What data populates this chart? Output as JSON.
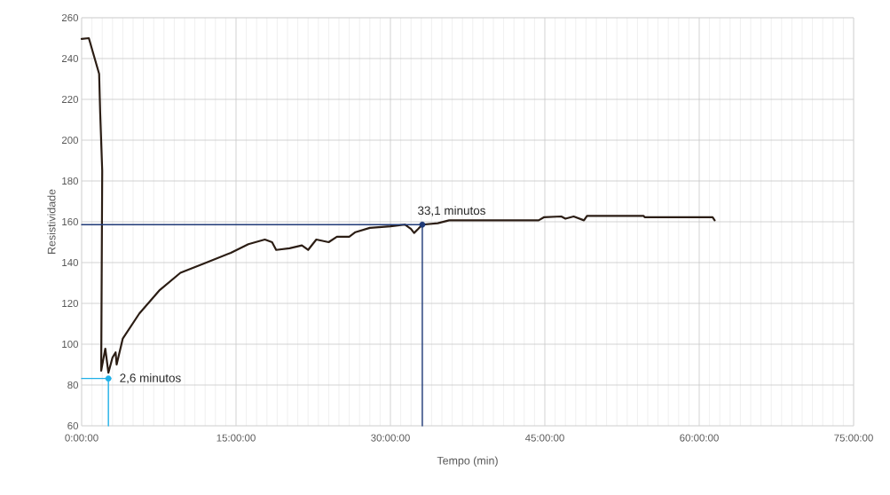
{
  "chart_data": {
    "type": "line",
    "xlabel": "Tempo (min)",
    "ylabel": "Resistividade",
    "xlim": [
      0,
      75
    ],
    "ylim": [
      60,
      260
    ],
    "xticks": [
      {
        "value": 0,
        "label": "0:00:00"
      },
      {
        "value": 15,
        "label": "15:00:00"
      },
      {
        "value": 30,
        "label": "30:00:00"
      },
      {
        "value": 45,
        "label": "45:00:00"
      },
      {
        "value": 60,
        "label": "60:00:00"
      },
      {
        "value": 75,
        "label": "75:00:00"
      }
    ],
    "yticks": [
      60,
      80,
      100,
      120,
      140,
      160,
      180,
      200,
      220,
      240,
      260
    ],
    "grid": true,
    "marker": "none",
    "line_style": "solid",
    "series": [
      {
        "color": "#2b1d14",
        "x": [
          0,
          0.7,
          1.7,
          1.8,
          2.0,
          1.9,
          2.3,
          2.6,
          3.0,
          3.3,
          3.4,
          4.0,
          5.6,
          7.6,
          9.6,
          11.9,
          14.5,
          16.2,
          17.8,
          18.5,
          18.9,
          20.2,
          21.4,
          22,
          22.8,
          24,
          24.8,
          26,
          26.6,
          28,
          30,
          31.4,
          32,
          32.3,
          32.7,
          33.1,
          34.6,
          35.7,
          44.4,
          44.9,
          46.6,
          47,
          47.8,
          48.8,
          49.1,
          54.6,
          54.7,
          61.3,
          61.5
        ],
        "values": [
          249.6,
          250,
          232.5,
          213.6,
          185,
          87,
          97.8,
          86,
          93.5,
          96,
          90,
          102.8,
          115,
          126.6,
          135,
          139.6,
          144.8,
          149,
          151.3,
          150,
          146.2,
          147,
          148.4,
          146.2,
          151.3,
          150,
          152.7,
          152.7,
          154.9,
          157,
          157.8,
          158.6,
          156.5,
          154.5,
          156.5,
          158.6,
          159.3,
          160.7,
          160.7,
          162.2,
          162.6,
          161.5,
          162.6,
          160.7,
          162.9,
          162.9,
          162.2,
          162.2,
          160.7
        ]
      },
      {
        "type": "line",
        "color": "#1fb0e8",
        "x": [
          0,
          2.6,
          2.6
        ],
        "values": [
          83.2,
          83.2,
          60
        ]
      },
      {
        "type": "line",
        "color": "#1f3a78",
        "x": [
          0,
          33.1,
          33.1
        ],
        "values": [
          158.6,
          158.6,
          60
        ]
      },
      {
        "type": "scatter",
        "marker": "circle",
        "color": "#1fb0e8",
        "x": [
          2.6
        ],
        "values": [
          83.2
        ]
      },
      {
        "type": "scatter",
        "marker": "circle",
        "color": "#1f3a78",
        "x": [
          33.1
        ],
        "values": [
          158.6
        ]
      }
    ],
    "annotations": [
      {
        "text": "2,6 minutos",
        "x": 2.6,
        "y": 83.2
      },
      {
        "text": "33,1 minutos",
        "x": 33.1,
        "y": 158.6
      }
    ]
  }
}
